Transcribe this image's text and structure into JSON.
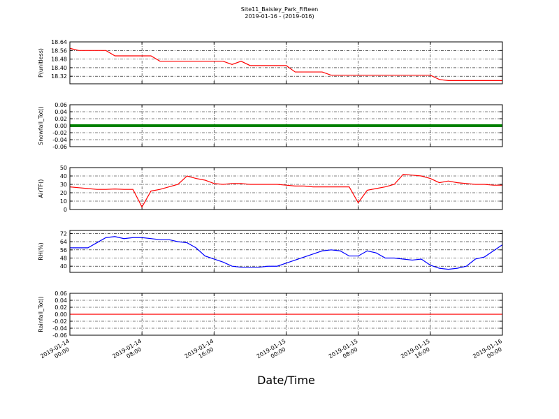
{
  "chart_data": [
    {
      "type": "line",
      "title": "Site11_Baisley_Park_Fifteen",
      "subtitle": "2019-01-16 - (2019-016)",
      "ylabel": "P(unitless)",
      "x": [
        "2019-01-14 00:00",
        "2019-01-14 01:00",
        "2019-01-14 02:00",
        "2019-01-14 03:00",
        "2019-01-14 04:00",
        "2019-01-14 05:00",
        "2019-01-14 06:00",
        "2019-01-14 07:00",
        "2019-01-14 08:00",
        "2019-01-14 09:00",
        "2019-01-14 10:00",
        "2019-01-14 11:00",
        "2019-01-14 12:00",
        "2019-01-14 13:00",
        "2019-01-14 14:00",
        "2019-01-14 15:00",
        "2019-01-14 16:00",
        "2019-01-14 17:00",
        "2019-01-14 18:00",
        "2019-01-14 19:00",
        "2019-01-14 20:00",
        "2019-01-14 21:00",
        "2019-01-14 22:00",
        "2019-01-14 23:00",
        "2019-01-15 00:00",
        "2019-01-15 01:00",
        "2019-01-15 02:00",
        "2019-01-15 03:00",
        "2019-01-15 04:00",
        "2019-01-15 05:00",
        "2019-01-15 06:00",
        "2019-01-15 07:00",
        "2019-01-15 08:00",
        "2019-01-15 09:00",
        "2019-01-15 10:00",
        "2019-01-15 11:00",
        "2019-01-15 12:00",
        "2019-01-15 13:00",
        "2019-01-15 14:00",
        "2019-01-15 15:00",
        "2019-01-15 16:00",
        "2019-01-15 17:00",
        "2019-01-15 18:00",
        "2019-01-15 19:00",
        "2019-01-15 20:00",
        "2019-01-15 21:00",
        "2019-01-15 22:00",
        "2019-01-15 23:00",
        "2019-01-16 00:00"
      ],
      "series": [
        {
          "color": "#ff0000",
          "values": [
            18.58,
            18.56,
            18.56,
            18.56,
            18.56,
            18.51,
            18.51,
            18.51,
            18.51,
            18.51,
            18.46,
            18.46,
            18.46,
            18.46,
            18.46,
            18.46,
            18.46,
            18.46,
            18.43,
            18.46,
            18.42,
            18.42,
            18.42,
            18.42,
            18.42,
            18.36,
            18.36,
            18.36,
            18.36,
            18.33,
            18.33,
            18.33,
            18.33,
            18.33,
            18.33,
            18.33,
            18.33,
            18.33,
            18.33,
            18.33,
            18.33,
            18.29,
            18.28,
            18.28,
            18.28,
            18.28,
            18.28,
            18.28,
            18.28
          ]
        }
      ],
      "xlim": [
        "2019-01-14 00:00",
        "2019-01-16 00:00"
      ],
      "xticks": [
        "2019-01-14 00:00",
        "2019-01-14 08:00",
        "2019-01-14 16:00",
        "2019-01-15 00:00",
        "2019-01-15 08:00",
        "2019-01-15 16:00",
        "2019-01-16 00:00"
      ],
      "ylim": [
        18.25,
        18.64
      ],
      "yticks": [
        18.32,
        {
          "value": 18.4,
          "label": "18.40"
        },
        18.48,
        18.56,
        18.64
      ],
      "grid": true
    },
    {
      "type": "line",
      "ylabel": "Snowfall_Tot()",
      "x": [
        "2019-01-14 00:00",
        "2019-01-14 01:00",
        "2019-01-14 02:00",
        "2019-01-14 03:00",
        "2019-01-14 04:00",
        "2019-01-14 05:00",
        "2019-01-14 06:00",
        "2019-01-14 07:00",
        "2019-01-14 08:00",
        "2019-01-14 09:00",
        "2019-01-14 10:00",
        "2019-01-14 11:00",
        "2019-01-14 12:00",
        "2019-01-14 13:00",
        "2019-01-14 14:00",
        "2019-01-14 15:00",
        "2019-01-14 16:00",
        "2019-01-14 17:00",
        "2019-01-14 18:00",
        "2019-01-14 19:00",
        "2019-01-14 20:00",
        "2019-01-14 21:00",
        "2019-01-14 22:00",
        "2019-01-14 23:00",
        "2019-01-15 00:00",
        "2019-01-15 01:00",
        "2019-01-15 02:00",
        "2019-01-15 03:00",
        "2019-01-15 04:00",
        "2019-01-15 05:00",
        "2019-01-15 06:00",
        "2019-01-15 07:00",
        "2019-01-15 08:00",
        "2019-01-15 09:00",
        "2019-01-15 10:00",
        "2019-01-15 11:00",
        "2019-01-15 12:00",
        "2019-01-15 13:00",
        "2019-01-15 14:00",
        "2019-01-15 15:00",
        "2019-01-15 16:00",
        "2019-01-15 17:00",
        "2019-01-15 18:00",
        "2019-01-15 19:00",
        "2019-01-15 20:00",
        "2019-01-15 21:00",
        "2019-01-15 22:00",
        "2019-01-15 23:00",
        "2019-01-16 00:00"
      ],
      "series": [
        {
          "color": "#008000",
          "values": [
            0,
            0,
            0,
            0,
            0,
            0,
            0,
            0,
            0,
            0,
            0,
            0,
            0,
            0,
            0,
            0,
            0,
            0,
            0,
            0,
            0,
            0,
            0,
            0,
            0,
            0,
            0,
            0,
            0,
            0,
            0,
            0,
            0,
            0,
            0,
            0,
            0,
            0,
            0,
            0,
            0,
            0,
            0,
            0,
            0,
            0,
            0,
            0,
            0
          ]
        }
      ],
      "xlim": [
        "2019-01-14 00:00",
        "2019-01-16 00:00"
      ],
      "xticks": [
        "2019-01-14 00:00",
        "2019-01-14 08:00",
        "2019-01-14 16:00",
        "2019-01-15 00:00",
        "2019-01-15 08:00",
        "2019-01-15 16:00",
        "2019-01-16 00:00"
      ],
      "ylim": [
        -0.06,
        0.06
      ],
      "yticks": [
        -0.06,
        -0.04,
        -0.02,
        {
          "value": 0,
          "label": "0.00"
        },
        0.02,
        0.04,
        0.06
      ],
      "grid": true
    },
    {
      "type": "line",
      "ylabel": "AirTF()",
      "x": [
        "2019-01-14 00:00",
        "2019-01-14 01:00",
        "2019-01-14 02:00",
        "2019-01-14 03:00",
        "2019-01-14 04:00",
        "2019-01-14 05:00",
        "2019-01-14 06:00",
        "2019-01-14 07:00",
        "2019-01-14 08:00",
        "2019-01-14 09:00",
        "2019-01-14 10:00",
        "2019-01-14 11:00",
        "2019-01-14 12:00",
        "2019-01-14 13:00",
        "2019-01-14 14:00",
        "2019-01-14 15:00",
        "2019-01-14 16:00",
        "2019-01-14 17:00",
        "2019-01-14 18:00",
        "2019-01-14 19:00",
        "2019-01-14 20:00",
        "2019-01-14 21:00",
        "2019-01-14 22:00",
        "2019-01-14 23:00",
        "2019-01-15 00:00",
        "2019-01-15 01:00",
        "2019-01-15 02:00",
        "2019-01-15 03:00",
        "2019-01-15 04:00",
        "2019-01-15 05:00",
        "2019-01-15 06:00",
        "2019-01-15 07:00",
        "2019-01-15 08:00",
        "2019-01-15 09:00",
        "2019-01-15 10:00",
        "2019-01-15 11:00",
        "2019-01-15 12:00",
        "2019-01-15 13:00",
        "2019-01-15 14:00",
        "2019-01-15 15:00",
        "2019-01-15 16:00",
        "2019-01-15 17:00",
        "2019-01-15 18:00",
        "2019-01-15 19:00",
        "2019-01-15 20:00",
        "2019-01-15 21:00",
        "2019-01-15 22:00",
        "2019-01-15 23:00",
        "2019-01-16 00:00"
      ],
      "series": [
        {
          "color": "#ff0000",
          "values": [
            27,
            26,
            25,
            24,
            24,
            24.5,
            24,
            24,
            3,
            22,
            24,
            27,
            30,
            40,
            37,
            35,
            31,
            30,
            31,
            31,
            30,
            30,
            30,
            30,
            29,
            28,
            28,
            27,
            27,
            27,
            27,
            27,
            8,
            23,
            25,
            27,
            30,
            42,
            41,
            40,
            37,
            32,
            34,
            32,
            31,
            30,
            30,
            29,
            29
          ]
        }
      ],
      "xlim": [
        "2019-01-14 00:00",
        "2019-01-16 00:00"
      ],
      "xticks": [
        "2019-01-14 00:00",
        "2019-01-14 08:00",
        "2019-01-14 16:00",
        "2019-01-15 00:00",
        "2019-01-15 08:00",
        "2019-01-15 16:00",
        "2019-01-16 00:00"
      ],
      "ylim": [
        0,
        50
      ],
      "yticks": [
        0,
        10,
        20,
        30,
        40,
        50
      ],
      "grid": true
    },
    {
      "type": "line",
      "ylabel": "RH(%)",
      "x": [
        "2019-01-14 00:00",
        "2019-01-14 01:00",
        "2019-01-14 02:00",
        "2019-01-14 03:00",
        "2019-01-14 04:00",
        "2019-01-14 05:00",
        "2019-01-14 06:00",
        "2019-01-14 07:00",
        "2019-01-14 08:00",
        "2019-01-14 09:00",
        "2019-01-14 10:00",
        "2019-01-14 11:00",
        "2019-01-14 12:00",
        "2019-01-14 13:00",
        "2019-01-14 14:00",
        "2019-01-14 15:00",
        "2019-01-14 16:00",
        "2019-01-14 17:00",
        "2019-01-14 18:00",
        "2019-01-14 19:00",
        "2019-01-14 20:00",
        "2019-01-14 21:00",
        "2019-01-14 22:00",
        "2019-01-14 23:00",
        "2019-01-15 00:00",
        "2019-01-15 01:00",
        "2019-01-15 02:00",
        "2019-01-15 03:00",
        "2019-01-15 04:00",
        "2019-01-15 05:00",
        "2019-01-15 06:00",
        "2019-01-15 07:00",
        "2019-01-15 08:00",
        "2019-01-15 09:00",
        "2019-01-15 10:00",
        "2019-01-15 11:00",
        "2019-01-15 12:00",
        "2019-01-15 13:00",
        "2019-01-15 14:00",
        "2019-01-15 15:00",
        "2019-01-15 16:00",
        "2019-01-15 17:00",
        "2019-01-15 18:00",
        "2019-01-15 19:00",
        "2019-01-15 20:00",
        "2019-01-15 21:00",
        "2019-01-15 22:00",
        "2019-01-15 23:00",
        "2019-01-16 00:00"
      ],
      "series": [
        {
          "color": "#0000ff",
          "values": [
            58,
            58,
            58,
            63,
            68,
            69,
            67,
            68,
            68,
            67,
            66,
            66,
            64,
            63,
            58,
            50,
            47,
            44,
            40,
            39,
            39,
            39,
            40,
            40,
            43,
            46,
            49,
            52,
            55,
            56,
            55,
            50,
            50,
            55,
            53,
            48,
            48,
            47,
            46,
            47,
            41,
            38,
            37,
            38,
            40,
            47,
            49,
            55,
            61
          ]
        }
      ],
      "xlim": [
        "2019-01-14 00:00",
        "2019-01-16 00:00"
      ],
      "xticks": [
        "2019-01-14 00:00",
        "2019-01-14 08:00",
        "2019-01-14 16:00",
        "2019-01-15 00:00",
        "2019-01-15 08:00",
        "2019-01-15 16:00",
        "2019-01-16 00:00"
      ],
      "ylim": [
        34,
        75
      ],
      "yticks": [
        40,
        48,
        56,
        64,
        72
      ],
      "grid": true
    },
    {
      "type": "line",
      "ylabel": "Rainfall_Tot()",
      "xlabel": "Date/Time",
      "x": [
        "2019-01-14 00:00",
        "2019-01-14 01:00",
        "2019-01-14 02:00",
        "2019-01-14 03:00",
        "2019-01-14 04:00",
        "2019-01-14 05:00",
        "2019-01-14 06:00",
        "2019-01-14 07:00",
        "2019-01-14 08:00",
        "2019-01-14 09:00",
        "2019-01-14 10:00",
        "2019-01-14 11:00",
        "2019-01-14 12:00",
        "2019-01-14 13:00",
        "2019-01-14 14:00",
        "2019-01-14 15:00",
        "2019-01-14 16:00",
        "2019-01-14 17:00",
        "2019-01-14 18:00",
        "2019-01-14 19:00",
        "2019-01-14 20:00",
        "2019-01-14 21:00",
        "2019-01-14 22:00",
        "2019-01-14 23:00",
        "2019-01-15 00:00",
        "2019-01-15 01:00",
        "2019-01-15 02:00",
        "2019-01-15 03:00",
        "2019-01-15 04:00",
        "2019-01-15 05:00",
        "2019-01-15 06:00",
        "2019-01-15 07:00",
        "2019-01-15 08:00",
        "2019-01-15 09:00",
        "2019-01-15 10:00",
        "2019-01-15 11:00",
        "2019-01-15 12:00",
        "2019-01-15 13:00",
        "2019-01-15 14:00",
        "2019-01-15 15:00",
        "2019-01-15 16:00",
        "2019-01-15 17:00",
        "2019-01-15 18:00",
        "2019-01-15 19:00",
        "2019-01-15 20:00",
        "2019-01-15 21:00",
        "2019-01-15 22:00",
        "2019-01-15 23:00",
        "2019-01-16 00:00"
      ],
      "series": [
        {
          "color": "#ff0000",
          "values": [
            0,
            0,
            0,
            0,
            0,
            0,
            0,
            0,
            0,
            0,
            0,
            0,
            0,
            0,
            0,
            0,
            0,
            0,
            0,
            0,
            0,
            0,
            0,
            0,
            0,
            0,
            0,
            0,
            0,
            0,
            0,
            0,
            0,
            0,
            0,
            0,
            0,
            0,
            0,
            0,
            0,
            0,
            0,
            0,
            0,
            0,
            0,
            0,
            0
          ]
        }
      ],
      "xlim": [
        "2019-01-14 00:00",
        "2019-01-16 00:00"
      ],
      "xticks": [
        "2019-01-14 00:00",
        "2019-01-14 08:00",
        "2019-01-14 16:00",
        "2019-01-15 00:00",
        "2019-01-15 08:00",
        "2019-01-15 16:00",
        "2019-01-16 00:00"
      ],
      "show_xticklabels": true,
      "ylim": [
        -0.06,
        0.06
      ],
      "yticks": [
        -0.06,
        -0.04,
        -0.02,
        {
          "value": 0,
          "label": "0.00"
        },
        0.02,
        0.04,
        0.06
      ],
      "grid": true
    }
  ]
}
